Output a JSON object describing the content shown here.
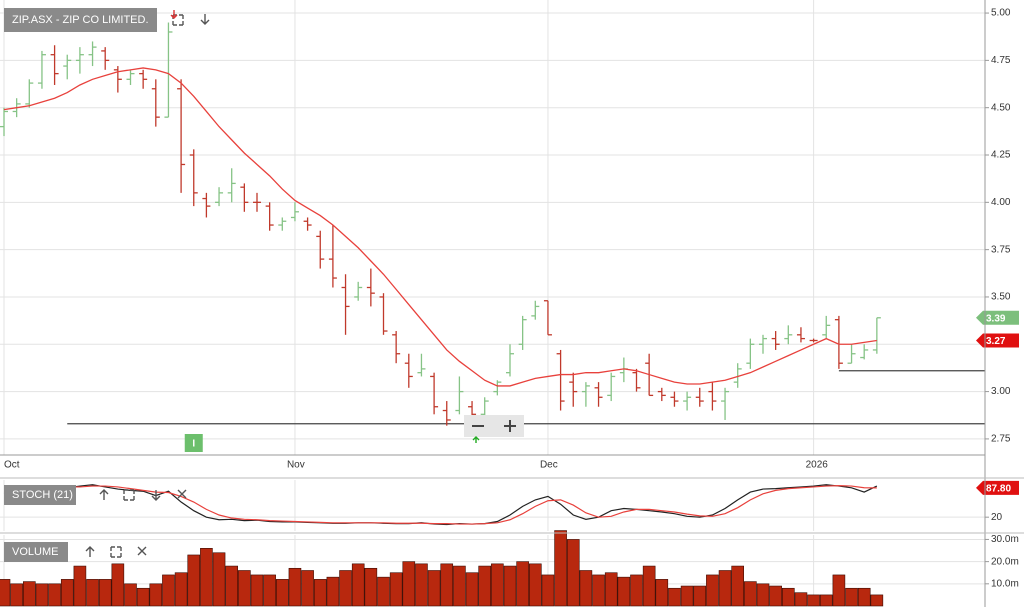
{
  "chart_data": [
    {
      "type": "ohlc",
      "title": "ZIP.ASX - ZIP CO LIMITED.",
      "categories": [
        "Oct",
        null,
        null,
        null,
        null,
        null,
        null,
        null,
        null,
        null,
        null,
        null,
        null,
        null,
        null,
        null,
        null,
        null,
        null,
        null,
        null,
        null,
        null,
        "Nov",
        null,
        null,
        null,
        null,
        null,
        null,
        null,
        null,
        null,
        null,
        null,
        null,
        null,
        null,
        null,
        null,
        null,
        null,
        null,
        "Dec",
        null,
        null,
        null,
        null,
        null,
        null,
        null,
        null,
        null,
        null,
        null,
        null,
        null,
        null,
        null,
        null,
        null,
        null,
        null,
        null,
        "2026",
        null,
        null,
        null,
        null,
        null
      ],
      "open": [
        4.4,
        4.48,
        4.52,
        4.63,
        4.78,
        4.72,
        4.75,
        4.78,
        4.8,
        4.7,
        4.65,
        4.68,
        4.6,
        4.45,
        4.6,
        4.25,
        4.02,
        4.0,
        4.05,
        4.08,
        4.0,
        3.98,
        3.88,
        3.92,
        3.9,
        3.82,
        3.7,
        3.55,
        3.5,
        3.55,
        3.5,
        3.3,
        3.15,
        3.1,
        3.08,
        2.9,
        2.9,
        2.92,
        2.88,
        3.0,
        3.1,
        3.25,
        3.4,
        3.48,
        3.2,
        3.05,
        3.0,
        3.02,
        2.98,
        3.1,
        3.1,
        3.15,
        3.0,
        2.97,
        2.95,
        2.97,
        3.0,
        2.95,
        3.05,
        3.15,
        3.25,
        3.28,
        3.28,
        3.3,
        3.27,
        3.3,
        3.38,
        3.15,
        3.18,
        3.22
      ],
      "high": [
        4.5,
        4.55,
        4.65,
        4.8,
        4.83,
        4.78,
        4.82,
        4.85,
        4.82,
        4.72,
        4.7,
        4.7,
        4.65,
        4.95,
        4.65,
        4.28,
        4.05,
        4.08,
        4.18,
        4.1,
        4.05,
        4.0,
        3.92,
        4.0,
        3.92,
        3.85,
        3.88,
        3.62,
        3.58,
        3.65,
        3.52,
        3.32,
        3.2,
        3.2,
        3.1,
        2.95,
        3.08,
        2.95,
        2.97,
        3.06,
        3.25,
        3.4,
        3.48,
        3.48,
        3.22,
        3.1,
        3.05,
        3.05,
        3.1,
        3.18,
        3.12,
        3.2,
        3.02,
        3.0,
        3.0,
        3.02,
        3.05,
        3.02,
        3.15,
        3.28,
        3.3,
        3.32,
        3.35,
        3.34,
        3.28,
        3.4,
        3.4,
        3.25,
        3.25,
        3.39
      ],
      "low": [
        4.35,
        4.45,
        4.5,
        4.6,
        4.62,
        4.65,
        4.68,
        4.72,
        4.7,
        4.58,
        4.62,
        4.6,
        4.4,
        4.45,
        4.05,
        3.98,
        3.92,
        3.98,
        4.0,
        3.95,
        3.95,
        3.85,
        3.85,
        3.9,
        3.85,
        3.65,
        3.55,
        3.3,
        3.48,
        3.45,
        3.3,
        3.15,
        3.02,
        3.08,
        2.88,
        2.82,
        2.88,
        2.82,
        2.85,
        2.98,
        3.08,
        3.22,
        3.38,
        3.3,
        2.9,
        2.92,
        2.92,
        2.92,
        2.95,
        3.05,
        3.0,
        2.98,
        2.95,
        2.92,
        2.9,
        2.92,
        2.9,
        2.85,
        3.02,
        3.12,
        3.2,
        3.22,
        3.25,
        3.26,
        3.26,
        3.28,
        3.12,
        3.15,
        3.17,
        3.2
      ],
      "close": [
        4.48,
        4.52,
        4.63,
        4.78,
        4.68,
        4.75,
        4.78,
        4.82,
        4.75,
        4.65,
        4.68,
        4.65,
        4.45,
        4.9,
        4.2,
        4.05,
        3.98,
        4.05,
        4.1,
        4.0,
        4.0,
        3.88,
        3.9,
        3.95,
        3.88,
        3.7,
        3.6,
        3.45,
        3.55,
        3.52,
        3.32,
        3.2,
        3.08,
        3.12,
        2.92,
        2.85,
        3.0,
        2.88,
        2.95,
        3.05,
        3.2,
        3.38,
        3.45,
        3.3,
        2.95,
        3.0,
        3.03,
        2.97,
        3.08,
        3.12,
        3.02,
        2.98,
        2.98,
        2.95,
        2.97,
        2.95,
        2.95,
        3.0,
        3.12,
        3.25,
        3.28,
        3.25,
        3.3,
        3.28,
        3.27,
        3.35,
        3.15,
        3.2,
        3.22,
        3.39
      ],
      "up_color": "#86c386",
      "down_color": "#c0392b",
      "ma": {
        "color": "#e8413c",
        "values": [
          4.49,
          4.5,
          4.51,
          4.53,
          4.55,
          4.58,
          4.62,
          4.65,
          4.67,
          4.69,
          4.7,
          4.71,
          4.7,
          4.68,
          4.63,
          4.56,
          4.48,
          4.4,
          4.33,
          4.26,
          4.2,
          4.14,
          4.07,
          4.01,
          3.97,
          3.93,
          3.88,
          3.82,
          3.76,
          3.69,
          3.62,
          3.54,
          3.46,
          3.38,
          3.3,
          3.22,
          3.16,
          3.11,
          3.06,
          3.03,
          3.03,
          3.05,
          3.07,
          3.08,
          3.09,
          3.09,
          3.1,
          3.1,
          3.11,
          3.12,
          3.11,
          3.09,
          3.07,
          3.05,
          3.04,
          3.04,
          3.05,
          3.06,
          3.08,
          3.1,
          3.13,
          3.16,
          3.19,
          3.22,
          3.25,
          3.28,
          3.25,
          3.25,
          3.26,
          3.27
        ]
      },
      "hlines": [
        {
          "value": 2.83,
          "from": 5,
          "color": "#444"
        },
        {
          "value": 3.11,
          "from": 66,
          "color": "#444"
        }
      ],
      "price_tags": [
        {
          "value": 3.39,
          "color": "#7cbf7c"
        },
        {
          "value": 3.27,
          "color": "#e01010"
        }
      ],
      "annotations": [
        {
          "label": "I",
          "at": 15,
          "color": "#6cbf6c"
        }
      ],
      "ylim": [
        2.665,
        5.069
      ],
      "yticks": [
        {
          "value": 2.75,
          "label": "2.75"
        },
        {
          "value": 3,
          "label": "3.00"
        },
        3.25,
        {
          "value": 3.5,
          "label": "3.50"
        },
        3.75,
        {
          "value": 4,
          "label": "4.00"
        },
        4.25,
        {
          "value": 4.5,
          "label": "4.50"
        },
        4.75,
        {
          "value": 5,
          "label": "5.00"
        }
      ],
      "grid": true
    },
    {
      "type": "line",
      "title": "STOCH (21)",
      "series": [
        {
          "color": "#222",
          "values": [
            75,
            82,
            88,
            92,
            90,
            88,
            92,
            95,
            90,
            85,
            82,
            80,
            70,
            80,
            55,
            35,
            20,
            14,
            15,
            12,
            13,
            10,
            9,
            9,
            8,
            7,
            6,
            6,
            7,
            7,
            6,
            5,
            5,
            7,
            4,
            3,
            5,
            4,
            5,
            10,
            25,
            45,
            60,
            68,
            50,
            25,
            15,
            20,
            35,
            40,
            38,
            35,
            32,
            28,
            22,
            20,
            25,
            40,
            60,
            78,
            85,
            86,
            88,
            90,
            92,
            95,
            92,
            88,
            78,
            92
          ]
        },
        {
          "color": "#e8413c",
          "values": [
            78,
            80,
            85,
            88,
            90,
            90,
            90,
            92,
            92,
            90,
            86,
            82,
            78,
            77,
            68,
            55,
            38,
            25,
            18,
            15,
            14,
            12,
            11,
            10,
            9,
            8,
            7,
            7,
            7,
            7,
            7,
            6,
            6,
            6,
            5,
            5,
            4,
            4,
            5,
            7,
            14,
            28,
            45,
            58,
            60,
            48,
            30,
            20,
            22,
            32,
            38,
            38,
            35,
            32,
            27,
            23,
            22,
            28,
            42,
            60,
            74,
            82,
            86,
            88,
            90,
            92,
            93,
            92,
            88,
            87.8
          ]
        }
      ],
      "price_tags": [
        {
          "value": 87.8,
          "label": "87.80",
          "color": "#e01010"
        }
      ],
      "ylim": [
        -12,
        106
      ],
      "yticks": [
        20
      ],
      "grid": true
    },
    {
      "type": "bar",
      "title": "VOLUME",
      "values": [
        12,
        10,
        11,
        10,
        10,
        12,
        18,
        12,
        12,
        19,
        10,
        8,
        10,
        14,
        15,
        23,
        26,
        24,
        18,
        16,
        14,
        14,
        12,
        17,
        16,
        12,
        13,
        16,
        19,
        17,
        13,
        15,
        20,
        19,
        16,
        19,
        18,
        15,
        18,
        19,
        18,
        20,
        19,
        14,
        34,
        30,
        16,
        14,
        15,
        13,
        14,
        18,
        12,
        8,
        9,
        9,
        14,
        16,
        18,
        11,
        10,
        9,
        8,
        6,
        5,
        5,
        14,
        8,
        8,
        5
      ],
      "color": "#b8280e",
      "ylim": [
        0,
        32
      ],
      "yticks": [
        {
          "value": 10,
          "label": "10.0m"
        },
        {
          "value": 20,
          "label": "20.0m"
        },
        {
          "value": 30,
          "label": "30.0m"
        }
      ],
      "grid": true
    }
  ]
}
